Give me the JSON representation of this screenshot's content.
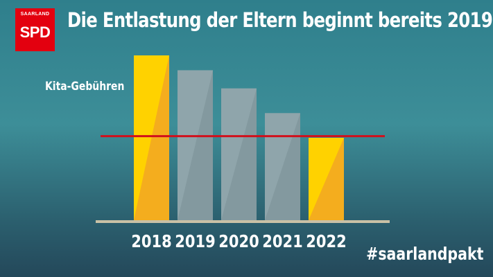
{
  "logo": {
    "region": "SAARLAND",
    "party": "SPD"
  },
  "hashtag": "#saarlandpakt",
  "colors": {
    "highlight_bar": "#ffd200",
    "highlight_bar_shade": "#f4ad1e",
    "muted_bar": "#8fa5ab",
    "reference_line": "#d1101c",
    "axis": "#c9c1a6"
  },
  "chart_data": {
    "type": "bar",
    "title": "Die Entlastung der Eltern beginnt bereits 2019",
    "series_label": "Kita-Gebühren",
    "categories": [
      "2018",
      "2019",
      "2020",
      "2021",
      "2022"
    ],
    "values": [
      100,
      91,
      80,
      65,
      50
    ],
    "highlighted": [
      true,
      false,
      false,
      false,
      true
    ],
    "reference_value": 51,
    "ylim": [
      0,
      100
    ],
    "yaxis_visible": false,
    "grid": false,
    "legend": "none"
  }
}
